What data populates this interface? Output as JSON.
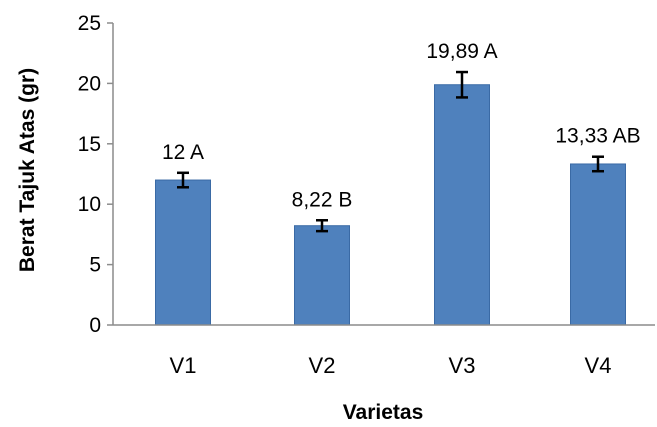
{
  "chart_data": {
    "type": "bar",
    "categories": [
      "V1",
      "V2",
      "V3",
      "V4"
    ],
    "values": [
      12,
      8.22,
      19.89,
      13.33
    ],
    "errors": [
      0.6,
      0.45,
      1.05,
      0.6
    ],
    "data_labels": [
      "12 A",
      "8,22 B",
      "19,89 A",
      "13,33 AB"
    ],
    "title": "",
    "xlabel": "Varietas",
    "ylabel": "Berat Tajuk Atas (gr)",
    "ylim": [
      0,
      25
    ],
    "yticks": [
      0,
      5,
      10,
      15,
      20,
      25
    ],
    "grid": false,
    "bar_color": "#4f81bd",
    "bar_edge_color": "#3a6aa5",
    "error_color": "#000000",
    "axis_color": "#8c8c8c"
  }
}
